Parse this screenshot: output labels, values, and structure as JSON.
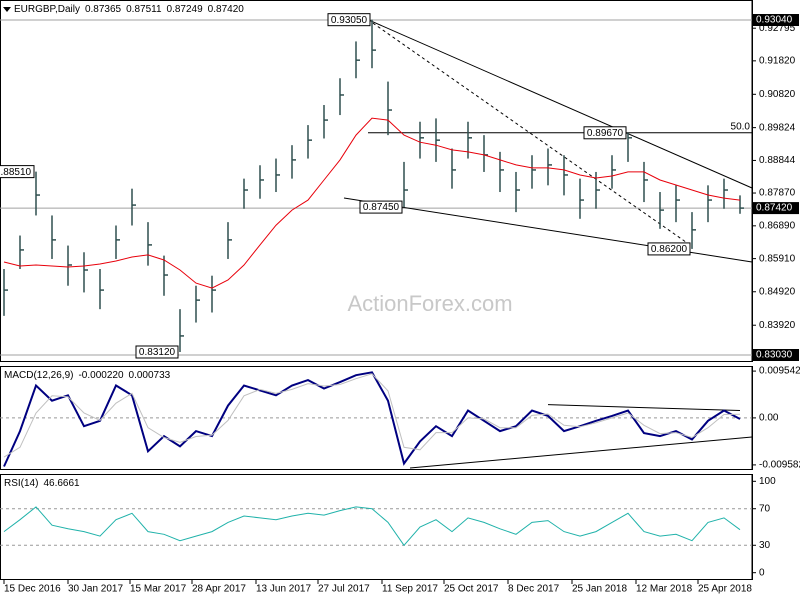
{
  "chart_data": [
    {
      "type": "ohlc",
      "title": "EURGBP,Daily",
      "quote": [
        0.87365,
        0.87511,
        0.87249,
        {
          "value": 0.8742,
          "label": "0.87420"
        }
      ],
      "watermark": "ActionForex.com",
      "color": "#2f4f4f",
      "x": [
        0,
        8,
        16,
        24,
        32,
        40,
        48,
        56,
        64,
        72,
        80,
        88,
        96,
        104,
        112,
        120,
        128,
        136,
        144,
        152,
        160,
        168,
        176,
        184,
        192,
        200,
        208,
        216,
        224,
        232,
        240,
        248,
        256,
        264,
        272,
        280,
        288,
        296,
        304,
        312,
        320,
        328,
        336,
        344,
        352,
        360,
        368
      ],
      "xlim": [
        -2,
        374
      ],
      "high": [
        0.856,
        0.866,
        0.8851,
        0.872,
        0.863,
        0.861,
        0.856,
        0.869,
        0.88,
        0.87,
        0.86,
        0.844,
        0.851,
        0.854,
        0.87,
        0.883,
        0.887,
        0.889,
        0.893,
        0.899,
        0.905,
        0.913,
        0.924,
        0.9305,
        0.912,
        0.888,
        0.9,
        0.901,
        0.892,
        0.9,
        0.896,
        0.891,
        0.885,
        0.89,
        0.892,
        0.89,
        0.883,
        0.885,
        0.89,
        0.8967,
        0.888,
        0.879,
        0.881,
        0.873,
        0.881,
        0.883,
        0.878
      ],
      "low": [
        0.842,
        0.856,
        0.872,
        0.859,
        0.851,
        0.849,
        0.844,
        0.859,
        0.869,
        0.857,
        0.848,
        0.8312,
        0.84,
        0.843,
        0.859,
        0.874,
        0.877,
        0.879,
        0.883,
        0.889,
        0.895,
        0.902,
        0.913,
        0.916,
        0.896,
        0.8745,
        0.889,
        0.888,
        0.88,
        0.889,
        0.885,
        0.879,
        0.873,
        0.88,
        0.881,
        0.878,
        0.871,
        0.874,
        0.88,
        0.888,
        0.876,
        0.868,
        0.87,
        0.862,
        0.87,
        0.874,
        0.8725
      ],
      "close": [
        0.8497,
        0.8617,
        0.8781,
        0.8647,
        0.8572,
        0.8557,
        0.8497,
        0.8647,
        0.8751,
        0.8632,
        0.8542,
        0.836,
        0.8467,
        0.8497,
        0.8647,
        0.8796,
        0.8826,
        0.8841,
        0.8886,
        0.8945,
        0.9005,
        0.908,
        0.9184,
        0.9214,
        0.9035,
        0.8796,
        0.8952,
        0.8945,
        0.8856,
        0.8952,
        0.8901,
        0.8856,
        0.8796,
        0.8856,
        0.8871,
        0.8841,
        0.8766,
        0.8796,
        0.8856,
        0.8952,
        0.8826,
        0.8736,
        0.8766,
        0.8677,
        0.8766,
        0.8796,
        0.8742
      ],
      "ma": {
        "color": "#e8000b",
        "values": [
          0.8581,
          0.8569,
          0.8572,
          0.8569,
          0.8566,
          0.8569,
          0.8575,
          0.8584,
          0.8596,
          0.8602,
          0.8587,
          0.8557,
          0.8518,
          0.8503,
          0.8527,
          0.8572,
          0.8632,
          0.8691,
          0.8736,
          0.8766,
          0.8826,
          0.8886,
          0.896,
          0.9011,
          0.9005,
          0.896,
          0.8939,
          0.893,
          0.8916,
          0.891,
          0.8901,
          0.8886,
          0.8871,
          0.8862,
          0.8862,
          0.8856,
          0.8841,
          0.8832,
          0.8838,
          0.885,
          0.885,
          0.8826,
          0.8811,
          0.8796,
          0.8781,
          0.8772,
          0.8766
        ]
      },
      "ylim": [
        0.82821,
        0.93638
      ],
      "yticks": [
        0.92795,
        {
          "value": 0.9182,
          "label": "0.91820"
        },
        {
          "value": 0.9082,
          "label": "0.90820"
        },
        0.89824,
        0.88844,
        {
          "value": 0.8787,
          "label": "0.87870"
        },
        {
          "value": 0.8689,
          "label": "0.86890"
        },
        {
          "value": 0.8591,
          "label": "0.85910"
        },
        {
          "value": 0.8492,
          "label": "0.84920"
        },
        {
          "value": 0.8392,
          "label": "0.83920"
        }
      ],
      "marked_levels": [
        {
          "value": 0.9304,
          "label": "0.93040"
        },
        {
          "value": 0.8742,
          "label": "0.87420"
        },
        {
          "value": 0.8303,
          "label": "0.83030"
        }
      ],
      "annotations": [
        {
          "x": 184,
          "value": 0.9305,
          "label": "0.93050"
        },
        {
          "x": 16,
          "value": 0.8851,
          "label": "0.88510"
        },
        {
          "x": 200,
          "value": 0.8745,
          "label": "0.87450"
        },
        {
          "x": 312,
          "value": 0.8967,
          "label": "0.89670"
        },
        {
          "x": 344,
          "value": 0.862,
          "label": "0.86200"
        },
        {
          "x": 88,
          "value": 0.8312,
          "label": "0.83120"
        }
      ],
      "fib_label": "50.0",
      "trendlines": [
        {
          "x": [
            182,
            374
          ],
          "y": [
            0.9305,
            0.8802
          ],
          "dash": false
        },
        {
          "x": [
            182,
            343
          ],
          "y": [
            0.9305,
            0.8632
          ],
          "dash": true
        },
        {
          "x": [
            170,
            374
          ],
          "y": [
            0.8772,
            0.8581
          ],
          "dash": false
        },
        {
          "x": [
            182,
            374
          ],
          "y": [
            0.8967,
            0.8967
          ],
          "dash": false
        }
      ]
    },
    {
      "type": "line",
      "title": "MACD(12,26,9)",
      "quote": [
        {
          "value": -0.00022,
          "label": "-0.000220"
        },
        0.000733
      ],
      "series": [
        {
          "color": "#000080",
          "width": 2,
          "values": [
            -0.0099,
            -0.0027,
            0.0066,
            0.0035,
            0.0046,
            -0.0017,
            -0.0006,
            0.0066,
            0.0046,
            -0.0068,
            -0.0037,
            -0.0058,
            -0.0027,
            -0.0037,
            0.0025,
            0.0066,
            0.0056,
            0.0046,
            0.0066,
            0.0077,
            0.006,
            0.0073,
            0.0087,
            0.0093,
            0.0035,
            -0.0093,
            -0.0048,
            -0.0017,
            -0.0037,
            0.0015,
            -0.0006,
            -0.0027,
            -0.0017,
            0.0015,
            0.0004,
            -0.0027,
            -0.0017,
            -0.0006,
            0.0004,
            0.0015,
            -0.0031,
            -0.0037,
            -0.0027,
            -0.0044,
            -0.0006,
            0.0015,
            -0.00022
          ]
        },
        {
          "color": "#c0c0c0",
          "width": 1,
          "values": [
            -0.008,
            -0.006,
            0.001,
            0.0045,
            0.0043,
            0.001,
            -0.0005,
            0.003,
            0.005,
            -0.002,
            -0.004,
            -0.005,
            -0.0038,
            -0.0035,
            -0.0005,
            0.0045,
            0.0058,
            0.005,
            0.0058,
            0.007,
            0.0065,
            0.0068,
            0.008,
            0.009,
            0.0055,
            -0.006,
            -0.0065,
            -0.003,
            -0.003,
            0.0,
            -0.0002,
            -0.002,
            -0.002,
            0.0005,
            0.0008,
            -0.0015,
            -0.0018,
            -0.001,
            0.0,
            0.001,
            -0.0015,
            -0.0032,
            -0.003,
            -0.004,
            -0.002,
            0.0007,
            0.000733
          ]
        }
      ],
      "ylim": [
        -0.01062,
        0.01058
      ],
      "yticks": [
        0.009542,
        {
          "value": 0,
          "label": "0.00"
        },
        -0.009582
      ],
      "levels": [
        0
      ],
      "trendlines": [
        {
          "x": [
            272,
            368
          ],
          "y": [
            0.0027,
            0.0015
          ],
          "dash": false
        },
        {
          "x": [
            203,
            374
          ],
          "y": [
            -0.0102,
            -0.0039
          ],
          "dash": false
        }
      ]
    },
    {
      "type": "line",
      "title": "RSI(14)",
      "quote": [
        46.6661
      ],
      "series": [
        {
          "color": "#20b2aa",
          "width": 1,
          "values": [
            45,
            58,
            72,
            52,
            48,
            45,
            40,
            58,
            65,
            45,
            42,
            35,
            40,
            45,
            55,
            62,
            60,
            58,
            62,
            65,
            63,
            68,
            72,
            70,
            55,
            30,
            50,
            58,
            45,
            60,
            55,
            48,
            42,
            55,
            57,
            45,
            40,
            45,
            55,
            65,
            45,
            40,
            42,
            35,
            55,
            60,
            47
          ]
        }
      ],
      "ylim": [
        -8,
        108
      ],
      "yticks": [
        100,
        70,
        30,
        0
      ],
      "levels": [
        70,
        30
      ],
      "xticks": [
        {
          "value": 0,
          "label": "15 Dec 2016"
        },
        {
          "value": 32,
          "label": "30 Jan 2017"
        },
        {
          "value": 63,
          "label": "15 Mar 2017"
        },
        {
          "value": 94,
          "label": "28 Apr 2017"
        },
        {
          "value": 126,
          "label": "13 Jun 2017"
        },
        {
          "value": 157,
          "label": "27 Jul 2017"
        },
        {
          "value": 189,
          "label": "11 Sep 2017"
        },
        {
          "value": 220,
          "label": "25 Oct 2017"
        },
        {
          "value": 252,
          "label": "8 Dec 2017"
        },
        {
          "value": 284,
          "label": "25 Jan 2018"
        },
        {
          "value": 316,
          "label": "12 Mar 2018"
        },
        {
          "value": 347,
          "label": "25 Apr 2018"
        }
      ]
    }
  ]
}
